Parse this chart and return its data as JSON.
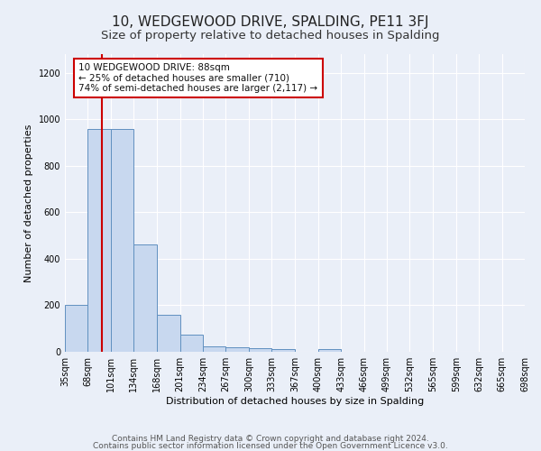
{
  "title": "10, WEDGEWOOD DRIVE, SPALDING, PE11 3FJ",
  "subtitle": "Size of property relative to detached houses in Spalding",
  "xlabel": "Distribution of detached houses by size in Spalding",
  "ylabel": "Number of detached properties",
  "bin_edges": [
    35,
    68,
    101,
    134,
    168,
    201,
    234,
    267,
    300,
    333,
    367,
    400,
    433,
    466,
    499,
    532,
    565,
    599,
    632,
    665,
    698
  ],
  "bar_heights": [
    200,
    960,
    960,
    460,
    160,
    75,
    25,
    20,
    15,
    10,
    0,
    10,
    0,
    0,
    0,
    0,
    0,
    0,
    0,
    0
  ],
  "bar_color": "#c8d8ef",
  "bar_edge_color": "#6090c0",
  "property_size": 88,
  "red_line_color": "#cc0000",
  "annotation_line1": "10 WEDGEWOOD DRIVE: 88sqm",
  "annotation_line2": "← 25% of detached houses are smaller (710)",
  "annotation_line3": "74% of semi-detached houses are larger (2,117) →",
  "annotation_box_facecolor": "#ffffff",
  "annotation_box_edgecolor": "#cc0000",
  "ylim": [
    0,
    1280
  ],
  "yticks": [
    0,
    200,
    400,
    600,
    800,
    1000,
    1200
  ],
  "footer_line1": "Contains HM Land Registry data © Crown copyright and database right 2024.",
  "footer_line2": "Contains public sector information licensed under the Open Government Licence v3.0.",
  "background_color": "#eaeff8",
  "grid_color": "#ffffff",
  "title_fontsize": 11,
  "subtitle_fontsize": 9.5,
  "axis_label_fontsize": 8,
  "tick_fontsize": 7,
  "annotation_fontsize": 7.5,
  "footer_fontsize": 6.5
}
